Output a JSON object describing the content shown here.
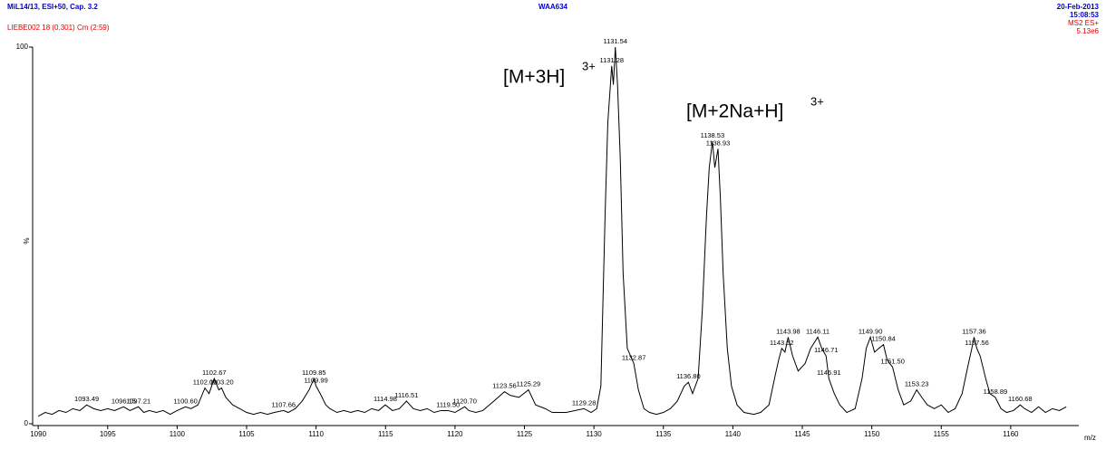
{
  "chart_data": {
    "type": "line",
    "header": {
      "left": "MiL14/13, ESI+50, Cap. 3.2",
      "center": "WAA634",
      "date": "20-Feb-2013",
      "time": "15:08:53"
    },
    "subheader": {
      "left": "LIEBE002 18 (0.301) Cm (2:59)",
      "mode": "MS2 ES+",
      "intensity": "5.13e6"
    },
    "xlabel": "m/z",
    "ylabel": "%",
    "annotations": [
      {
        "text": "[M+3H]",
        "sup": "3+"
      },
      {
        "text": "[M+2Na+H]",
        "sup": "3+"
      }
    ],
    "xlim": [
      1089.6,
      1164.9
    ],
    "ylim": [
      0,
      100
    ],
    "xticks": [
      1090,
      1095,
      1100,
      1105,
      1110,
      1115,
      1120,
      1125,
      1130,
      1135,
      1140,
      1145,
      1150,
      1155,
      1160
    ],
    "yticks": [
      0,
      100
    ],
    "color": "#000000",
    "x": [
      1090,
      1090.5,
      1091,
      1091.5,
      1092,
      1092.5,
      1093,
      1093.49,
      1094,
      1094.5,
      1095,
      1095.5,
      1096.15,
      1096.6,
      1097.21,
      1097.6,
      1098,
      1098.5,
      1099,
      1099.5,
      1100,
      1100.6,
      1101,
      1101.5,
      1102,
      1102.3,
      1102.67,
      1103,
      1103.2,
      1103.5,
      1104,
      1104.5,
      1105,
      1105.5,
      1106,
      1106.5,
      1107,
      1107.66,
      1108,
      1108.5,
      1109,
      1109.5,
      1109.85,
      1110,
      1110.3,
      1110.7,
      1111,
      1111.5,
      1112,
      1112.5,
      1113,
      1113.5,
      1114,
      1114.5,
      1114.98,
      1115.5,
      1116,
      1116.51,
      1117,
      1117.5,
      1118,
      1118.5,
      1119,
      1119.5,
      1120,
      1120.7,
      1121,
      1121.5,
      1122,
      1122.8,
      1123.56,
      1124,
      1124.6,
      1125.29,
      1125.8,
      1126.5,
      1127,
      1128,
      1129.28,
      1129.8,
      1130.2,
      1130.5,
      1130.8,
      1131,
      1131.28,
      1131.4,
      1131.54,
      1131.7,
      1131.9,
      1132.1,
      1132.4,
      1132.87,
      1133.2,
      1133.6,
      1134,
      1134.5,
      1135,
      1135.5,
      1136,
      1136.5,
      1136.8,
      1137.1,
      1137.5,
      1137.8,
      1138.1,
      1138.3,
      1138.53,
      1138.7,
      1138.93,
      1139.1,
      1139.3,
      1139.6,
      1139.9,
      1140.3,
      1140.8,
      1141.5,
      1142,
      1142.6,
      1143,
      1143.3,
      1143.52,
      1143.75,
      1143.98,
      1144.3,
      1144.7,
      1145.2,
      1145.6,
      1146.11,
      1146.4,
      1146.71,
      1146.91,
      1147.3,
      1147.7,
      1148.2,
      1148.8,
      1149.3,
      1149.6,
      1149.9,
      1150.2,
      1150.5,
      1150.84,
      1151.1,
      1151.5,
      1151.9,
      1152.3,
      1152.8,
      1153.23,
      1153.6,
      1154,
      1154.5,
      1155,
      1155.5,
      1156,
      1156.5,
      1156.9,
      1157.2,
      1157.36,
      1157.56,
      1157.8,
      1158.2,
      1158.5,
      1158.89,
      1159.3,
      1159.7,
      1160.2,
      1160.68,
      1161,
      1161.5,
      1162,
      1162.5,
      1163,
      1163.5,
      1164
    ],
    "values": [
      2,
      3,
      2.5,
      3.5,
      3,
      4,
      3.5,
      5,
      4,
      3.5,
      4,
      3.5,
      4.5,
      3.5,
      4.5,
      3,
      3.5,
      3,
      3.5,
      2.5,
      3.5,
      4.5,
      4,
      5,
      9.5,
      8,
      12,
      9,
      9.5,
      7,
      5,
      4,
      3,
      2.5,
      3,
      2.5,
      3,
      3.5,
      3,
      4,
      6,
      9,
      12,
      10,
      8,
      5,
      4,
      3,
      3.5,
      3,
      3.5,
      3,
      4,
      3.5,
      5,
      3.5,
      4,
      6,
      4,
      3.5,
      4,
      3,
      3.5,
      3.5,
      3,
      4.5,
      3.5,
      3,
      3.5,
      6,
      8.5,
      7.5,
      7,
      9,
      5,
      4,
      3,
      3,
      4,
      3,
      4,
      10,
      55,
      80,
      95,
      90,
      100,
      90,
      70,
      40,
      20,
      16,
      9,
      4,
      3,
      2.5,
      3,
      4,
      6,
      10,
      11,
      8,
      12,
      30,
      55,
      68,
      75,
      68,
      73,
      60,
      40,
      20,
      10,
      5,
      3,
      2.5,
      3,
      5,
      12,
      17,
      20,
      19,
      23,
      18,
      14,
      16,
      20,
      23,
      20,
      18,
      12,
      8,
      5,
      3,
      4,
      12,
      20,
      23,
      19,
      20,
      21,
      17,
      15,
      9,
      5,
      6,
      9,
      7,
      5,
      4,
      5,
      3,
      4,
      8,
      15,
      20,
      23,
      20,
      18,
      12,
      8,
      7,
      4,
      3,
      3.5,
      5,
      4,
      3,
      4.5,
      3,
      4,
      3.5,
      4.5
    ],
    "peaks": {
      "values": [
        1093.49,
        1096.15,
        1097.21,
        1100.6,
        1102,
        1102.67,
        1103.2,
        1107.66,
        1109.85,
        1109.99,
        1114.98,
        1116.51,
        1119.5,
        1120.7,
        1123.56,
        1125.29,
        1129.28,
        1131.28,
        1131.54,
        1132.87,
        1136.8,
        1138.53,
        1138.93,
        1143.52,
        1143.98,
        1146.11,
        1146.71,
        1146.91,
        1149.9,
        1150.84,
        1151.5,
        1153.23,
        1157.36,
        1157.56,
        1158.89,
        1160.68
      ],
      "value_labels": [
        "1093.49",
        "1096.15",
        "1097.21",
        "1100.60",
        "1102.00",
        "1102.67",
        "1103.20",
        "1107.66",
        "1109.85",
        "1109.99",
        "1114.98",
        "1116.51",
        "1119.50",
        "1120.70",
        "1123.56",
        "1125.29",
        "1129.28",
        "1131.28",
        "1131.54",
        "1132.87",
        "1136.80",
        "1138.53",
        "1138.93",
        "1143.52",
        "1143.98",
        "1146.11",
        "1146.71",
        "1146.91",
        "1149.90",
        "1150.84",
        "1151.50",
        "1153.23",
        "1157.36",
        "1157.56",
        "1158.89",
        "1160.68"
      ],
      "y": [
        5,
        4.5,
        4.5,
        4.5,
        9.5,
        12,
        9.5,
        3.5,
        12,
        10,
        5,
        6,
        3.5,
        4.5,
        8.5,
        9,
        4,
        95,
        100,
        16,
        11,
        75,
        73,
        20,
        23,
        23,
        18,
        12,
        23,
        21,
        15,
        9,
        23,
        20,
        7,
        5
      ]
    }
  }
}
